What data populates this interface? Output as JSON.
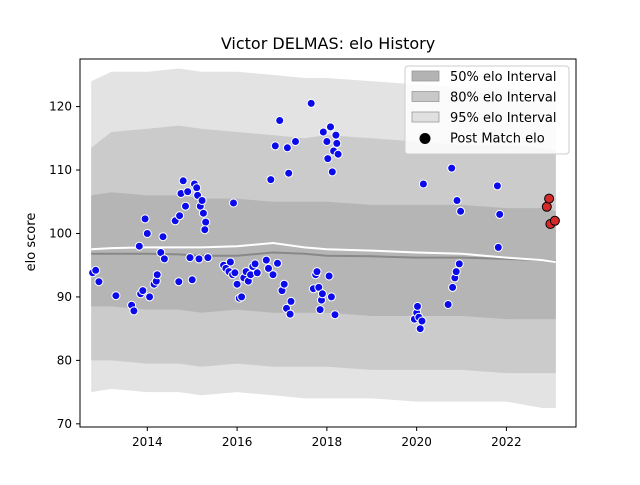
{
  "chart_data": {
    "type": "scatter",
    "title": "Victor DELMAS: elo History",
    "xlabel": "",
    "ylabel": "elo score",
    "xlim": [
      2012.5,
      2023.55
    ],
    "ylim": [
      69.5,
      127.5
    ],
    "xticks": [
      2014,
      2016,
      2018,
      2020,
      2022
    ],
    "yticks": [
      70,
      80,
      90,
      100,
      110,
      120
    ],
    "grid": false,
    "legend_position": "top-right",
    "legend": [
      {
        "label": "50% elo Interval",
        "kind": "band",
        "color": "#b3b3b3"
      },
      {
        "label": "80% elo Interval",
        "kind": "band",
        "color": "#c8c8c8"
      },
      {
        "label": "95% elo Interval",
        "kind": "band",
        "color": "#e0e0e0"
      },
      {
        "label": "Post Match elo",
        "kind": "marker",
        "color": "#000000"
      }
    ],
    "colors": {
      "band50": "#b5b5b5",
      "band80": "#cbcbcb",
      "band95": "#e3e3e3",
      "mean_line": "#ffffff",
      "median_line": "#888888",
      "points": "#0a0aeb",
      "recent_points": "#d42a2a"
    },
    "bands": {
      "x": [
        2012.75,
        2013.2,
        2014.0,
        2014.7,
        2015.2,
        2016.0,
        2016.8,
        2017.5,
        2018.0,
        2019.0,
        2020.0,
        2021.0,
        2022.0,
        2022.8,
        2023.1
      ],
      "p95_hi": [
        124.0,
        125.5,
        125.5,
        126.0,
        125.5,
        125.5,
        125.0,
        124.5,
        124.5,
        124.0,
        123.5,
        123.0,
        123.0,
        122.0,
        121.5
      ],
      "p80_hi": [
        113.5,
        116.0,
        116.5,
        117.0,
        116.5,
        116.0,
        115.5,
        115.0,
        115.5,
        115.0,
        114.5,
        114.0,
        114.0,
        113.5,
        113.0
      ],
      "p50_hi": [
        106.0,
        106.5,
        106.0,
        106.0,
        105.5,
        105.5,
        105.0,
        105.0,
        105.0,
        104.5,
        104.5,
        104.5,
        104.0,
        104.0,
        103.5
      ],
      "p50_lo": [
        88.5,
        88.5,
        88.0,
        88.0,
        87.5,
        88.0,
        87.5,
        87.5,
        87.5,
        87.0,
        87.0,
        87.0,
        86.5,
        86.5,
        86.5
      ],
      "p80_lo": [
        80.0,
        80.0,
        79.5,
        79.5,
        79.0,
        79.5,
        79.0,
        79.0,
        79.0,
        78.5,
        78.5,
        78.5,
        78.0,
        78.0,
        78.0
      ],
      "p95_lo": [
        75.0,
        75.5,
        75.0,
        75.0,
        74.5,
        75.0,
        74.5,
        74.0,
        74.0,
        74.0,
        73.5,
        73.5,
        73.5,
        72.5,
        72.5
      ],
      "mean": [
        97.5,
        97.7,
        97.8,
        97.8,
        97.8,
        98.0,
        98.5,
        97.8,
        97.5,
        97.3,
        97.0,
        96.8,
        96.2,
        95.8,
        95.5
      ],
      "median": [
        96.8,
        96.8,
        96.8,
        96.7,
        96.5,
        96.5,
        97.0,
        96.8,
        96.5,
        96.4,
        96.2,
        96.2,
        96.0,
        95.8,
        95.6
      ]
    },
    "points": [
      {
        "x": 2012.78,
        "y": 93.8
      },
      {
        "x": 2012.85,
        "y": 94.2
      },
      {
        "x": 2012.92,
        "y": 92.4
      },
      {
        "x": 2013.3,
        "y": 90.2
      },
      {
        "x": 2013.65,
        "y": 88.7
      },
      {
        "x": 2013.7,
        "y": 87.8
      },
      {
        "x": 2013.85,
        "y": 90.5
      },
      {
        "x": 2013.9,
        "y": 91.0
      },
      {
        "x": 2013.82,
        "y": 98.0
      },
      {
        "x": 2013.95,
        "y": 102.3
      },
      {
        "x": 2014.0,
        "y": 100.0
      },
      {
        "x": 2014.05,
        "y": 90.0
      },
      {
        "x": 2014.15,
        "y": 92.0
      },
      {
        "x": 2014.2,
        "y": 92.5
      },
      {
        "x": 2014.22,
        "y": 93.5
      },
      {
        "x": 2014.3,
        "y": 97.0
      },
      {
        "x": 2014.35,
        "y": 99.5
      },
      {
        "x": 2014.38,
        "y": 96.0
      },
      {
        "x": 2014.62,
        "y": 102.0
      },
      {
        "x": 2014.7,
        "y": 92.4
      },
      {
        "x": 2014.72,
        "y": 102.8
      },
      {
        "x": 2014.75,
        "y": 106.3
      },
      {
        "x": 2014.8,
        "y": 108.3
      },
      {
        "x": 2014.85,
        "y": 104.3
      },
      {
        "x": 2014.9,
        "y": 106.6
      },
      {
        "x": 2014.95,
        "y": 96.2
      },
      {
        "x": 2015.0,
        "y": 92.7
      },
      {
        "x": 2015.05,
        "y": 107.8
      },
      {
        "x": 2015.1,
        "y": 107.2
      },
      {
        "x": 2015.12,
        "y": 106.0
      },
      {
        "x": 2015.15,
        "y": 96.0
      },
      {
        "x": 2015.18,
        "y": 104.3
      },
      {
        "x": 2015.22,
        "y": 105.2
      },
      {
        "x": 2015.25,
        "y": 103.2
      },
      {
        "x": 2015.3,
        "y": 101.8
      },
      {
        "x": 2015.28,
        "y": 100.6
      },
      {
        "x": 2015.35,
        "y": 96.2
      },
      {
        "x": 2015.7,
        "y": 95.0
      },
      {
        "x": 2015.75,
        "y": 94.5
      },
      {
        "x": 2015.82,
        "y": 94.0
      },
      {
        "x": 2015.85,
        "y": 95.5
      },
      {
        "x": 2015.9,
        "y": 93.5
      },
      {
        "x": 2015.92,
        "y": 104.8
      },
      {
        "x": 2015.95,
        "y": 93.8
      },
      {
        "x": 2016.0,
        "y": 92.0
      },
      {
        "x": 2016.05,
        "y": 89.8
      },
      {
        "x": 2016.1,
        "y": 90.0
      },
      {
        "x": 2016.15,
        "y": 93.0
      },
      {
        "x": 2016.2,
        "y": 94.0
      },
      {
        "x": 2016.25,
        "y": 92.5
      },
      {
        "x": 2016.3,
        "y": 93.5
      },
      {
        "x": 2016.35,
        "y": 94.8
      },
      {
        "x": 2016.4,
        "y": 95.2
      },
      {
        "x": 2016.45,
        "y": 93.8
      },
      {
        "x": 2016.65,
        "y": 95.8
      },
      {
        "x": 2016.7,
        "y": 94.5
      },
      {
        "x": 2016.75,
        "y": 108.5
      },
      {
        "x": 2016.8,
        "y": 93.5
      },
      {
        "x": 2016.85,
        "y": 113.8
      },
      {
        "x": 2016.9,
        "y": 95.3
      },
      {
        "x": 2016.95,
        "y": 117.8
      },
      {
        "x": 2017.0,
        "y": 91.0
      },
      {
        "x": 2017.05,
        "y": 92.0
      },
      {
        "x": 2017.1,
        "y": 88.2
      },
      {
        "x": 2017.12,
        "y": 113.5
      },
      {
        "x": 2017.15,
        "y": 109.5
      },
      {
        "x": 2017.18,
        "y": 87.3
      },
      {
        "x": 2017.2,
        "y": 89.3
      },
      {
        "x": 2017.3,
        "y": 114.5
      },
      {
        "x": 2017.65,
        "y": 120.5
      },
      {
        "x": 2017.7,
        "y": 91.3
      },
      {
        "x": 2017.75,
        "y": 93.5
      },
      {
        "x": 2017.78,
        "y": 94.0
      },
      {
        "x": 2017.82,
        "y": 91.5
      },
      {
        "x": 2017.85,
        "y": 88.0
      },
      {
        "x": 2017.88,
        "y": 89.5
      },
      {
        "x": 2017.9,
        "y": 90.5
      },
      {
        "x": 2017.92,
        "y": 116.0
      },
      {
        "x": 2018.0,
        "y": 114.5
      },
      {
        "x": 2018.02,
        "y": 111.8
      },
      {
        "x": 2018.05,
        "y": 93.3
      },
      {
        "x": 2018.08,
        "y": 116.8
      },
      {
        "x": 2018.1,
        "y": 90.0
      },
      {
        "x": 2018.12,
        "y": 109.7
      },
      {
        "x": 2018.15,
        "y": 113.0
      },
      {
        "x": 2018.18,
        "y": 87.2
      },
      {
        "x": 2018.2,
        "y": 115.5
      },
      {
        "x": 2018.22,
        "y": 114.2
      },
      {
        "x": 2018.25,
        "y": 112.5
      },
      {
        "x": 2019.95,
        "y": 86.5
      },
      {
        "x": 2020.0,
        "y": 87.5
      },
      {
        "x": 2020.02,
        "y": 88.5
      },
      {
        "x": 2020.05,
        "y": 86.8
      },
      {
        "x": 2020.08,
        "y": 85.0
      },
      {
        "x": 2020.12,
        "y": 86.2
      },
      {
        "x": 2020.15,
        "y": 107.8
      },
      {
        "x": 2020.7,
        "y": 88.8
      },
      {
        "x": 2020.78,
        "y": 110.3
      },
      {
        "x": 2020.8,
        "y": 91.5
      },
      {
        "x": 2020.85,
        "y": 93.0
      },
      {
        "x": 2020.88,
        "y": 94.0
      },
      {
        "x": 2020.9,
        "y": 105.2
      },
      {
        "x": 2020.95,
        "y": 95.2
      },
      {
        "x": 2020.98,
        "y": 103.5
      },
      {
        "x": 2021.8,
        "y": 107.5
      },
      {
        "x": 2021.85,
        "y": 103.0
      },
      {
        "x": 2021.82,
        "y": 97.8
      }
    ],
    "recent_points": [
      {
        "x": 2022.9,
        "y": 104.2
      },
      {
        "x": 2022.95,
        "y": 105.5
      },
      {
        "x": 2022.98,
        "y": 101.5
      },
      {
        "x": 2023.08,
        "y": 102.0
      }
    ]
  }
}
